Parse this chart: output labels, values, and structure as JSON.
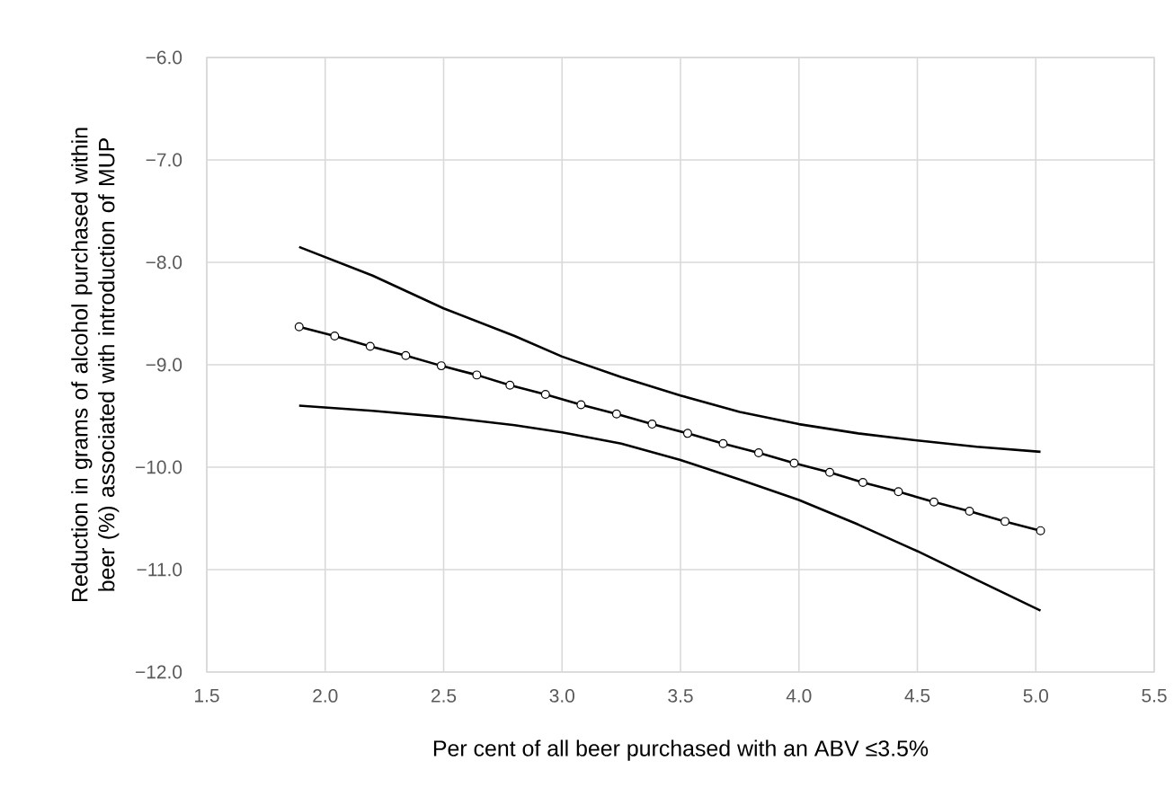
{
  "chart_data": {
    "type": "line",
    "xlabel": "Per cent of all beer purchased with an ABV ≤3.5%",
    "ylabel": "Reduction in grams of alcohol purchased within beer (%) associated with introduction of MUP",
    "xlim": [
      1.5,
      5.5
    ],
    "xticks": [
      {
        "value": 1.5,
        "label": "1.5"
      },
      {
        "value": 2,
        "label": "2.0"
      },
      {
        "value": 2.5,
        "label": "2.5"
      },
      {
        "value": 3,
        "label": "3.0"
      },
      {
        "value": 3.5,
        "label": "3.5"
      },
      {
        "value": 4,
        "label": "4.0"
      },
      {
        "value": 4.5,
        "label": "4.5"
      },
      {
        "value": 5,
        "label": "5.0"
      },
      {
        "value": 5.5,
        "label": "5.5"
      }
    ],
    "ylim": [
      -12,
      -6
    ],
    "yticks": [
      {
        "value": -12,
        "label": "−12.0"
      },
      {
        "value": -11,
        "label": "−11.0"
      },
      {
        "value": -10,
        "label": "−10.0"
      },
      {
        "value": -9,
        "label": "−9.0"
      },
      {
        "value": -8,
        "label": "−8.0"
      },
      {
        "value": -7,
        "label": "−7.0"
      },
      {
        "value": -6,
        "label": "−6.0"
      }
    ],
    "grid": true,
    "line_style": "solid",
    "series": [
      {
        "color": "#000000",
        "marker": "none",
        "x": [
          1.89,
          2.2,
          2.5,
          2.8,
          3.0,
          3.25,
          3.5,
          3.75,
          4.0,
          4.25,
          4.5,
          4.75,
          5.02
        ],
        "values": [
          -7.85,
          -8.13,
          -8.45,
          -8.72,
          -8.92,
          -9.12,
          -9.3,
          -9.46,
          -9.58,
          -9.67,
          -9.74,
          -9.8,
          -9.85
        ]
      },
      {
        "color": "#000000",
        "marker": "circle",
        "x": [
          1.89,
          2.04,
          2.19,
          2.34,
          2.49,
          2.64,
          2.78,
          2.93,
          3.08,
          3.23,
          3.38,
          3.53,
          3.68,
          3.83,
          3.98,
          4.13,
          4.27,
          4.42,
          4.57,
          4.72,
          4.87,
          5.02
        ],
        "values": [
          -8.63,
          -8.72,
          -8.82,
          -8.91,
          -9.01,
          -9.1,
          -9.2,
          -9.29,
          -9.39,
          -9.48,
          -9.58,
          -9.67,
          -9.77,
          -9.86,
          -9.96,
          -10.05,
          -10.15,
          -10.24,
          -10.34,
          -10.43,
          -10.53,
          -10.62
        ]
      },
      {
        "color": "#000000",
        "marker": "none",
        "x": [
          1.89,
          2.2,
          2.5,
          2.8,
          3.0,
          3.25,
          3.5,
          3.75,
          4.0,
          4.25,
          4.5,
          4.75,
          5.02
        ],
        "values": [
          -9.4,
          -9.45,
          -9.51,
          -9.59,
          -9.66,
          -9.77,
          -9.93,
          -10.12,
          -10.32,
          -10.56,
          -10.82,
          -11.1,
          -11.4
        ]
      }
    ]
  }
}
